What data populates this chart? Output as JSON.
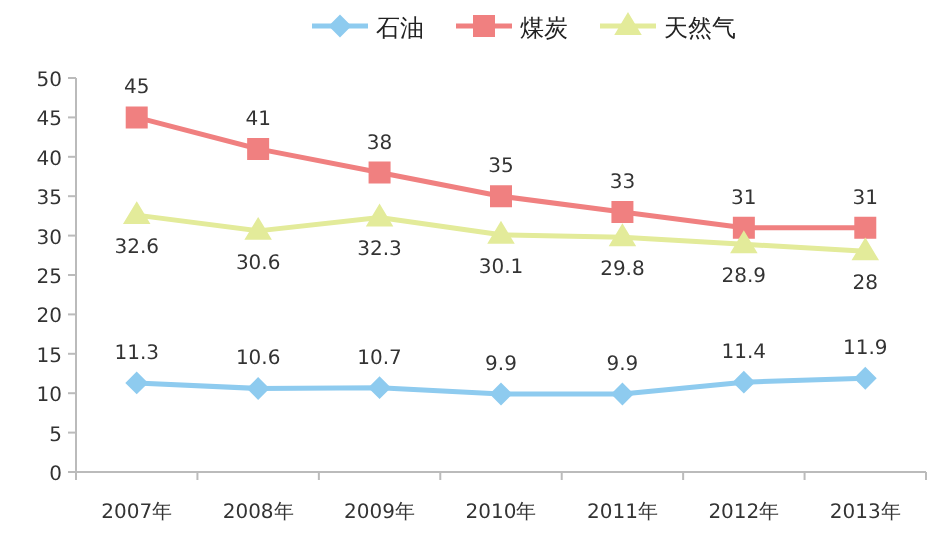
{
  "chart_data": {
    "type": "line",
    "categories": [
      "2007年",
      "2008年",
      "2009年",
      "2010年",
      "2011年",
      "2012年",
      "2013年"
    ],
    "series": [
      {
        "name": "石油",
        "color": "#8ecbef",
        "marker": "diamond",
        "values": [
          11.3,
          10.6,
          10.7,
          9.9,
          9.9,
          11.4,
          11.9
        ]
      },
      {
        "name": "煤炭",
        "color": "#f08080",
        "marker": "square",
        "values": [
          45,
          41,
          38,
          35,
          33,
          31,
          31
        ]
      },
      {
        "name": "天然气",
        "color": "#e3eb9a",
        "marker": "triangle",
        "values": [
          32.6,
          30.6,
          32.3,
          30.1,
          29.8,
          28.9,
          28
        ]
      }
    ],
    "ylim": [
      0,
      50
    ],
    "yticks": [
      0,
      5,
      10,
      15,
      20,
      25,
      30,
      35,
      40,
      45,
      50
    ],
    "data_labels": true,
    "legend": "top",
    "grid": false
  }
}
